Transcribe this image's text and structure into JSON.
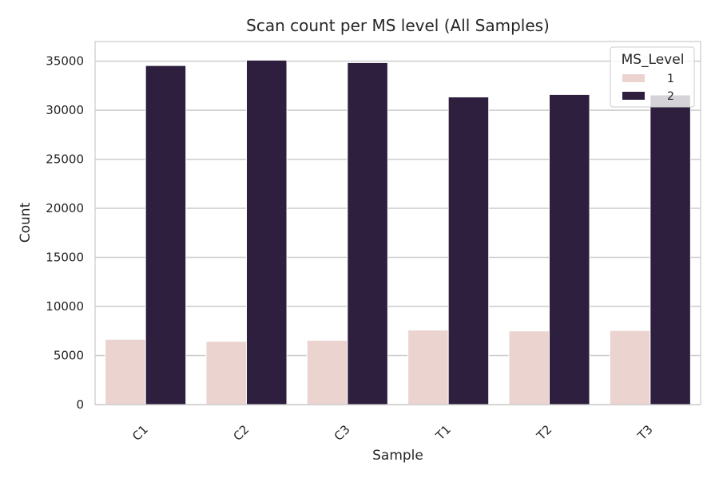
{
  "chart_data": {
    "type": "bar",
    "title": "Scan count per MS level (All Samples)",
    "xlabel": "Sample",
    "ylabel": "Count",
    "categories": [
      "C1",
      "C2",
      "C3",
      "T1",
      "T2",
      "T3"
    ],
    "ylim": [
      0,
      37000
    ],
    "yticks": [
      0,
      5000,
      10000,
      15000,
      20000,
      25000,
      30000,
      35000
    ],
    "grid": true,
    "legend": {
      "title": "MS_Level",
      "position": "top-right"
    },
    "series": [
      {
        "name": "1",
        "color": "#ebd3d0",
        "values": [
          6650,
          6450,
          6550,
          7600,
          7500,
          7550
        ]
      },
      {
        "name": "2",
        "color": "#2d1f3d",
        "values": [
          34550,
          35100,
          34850,
          31350,
          31600,
          31550
        ]
      }
    ]
  }
}
